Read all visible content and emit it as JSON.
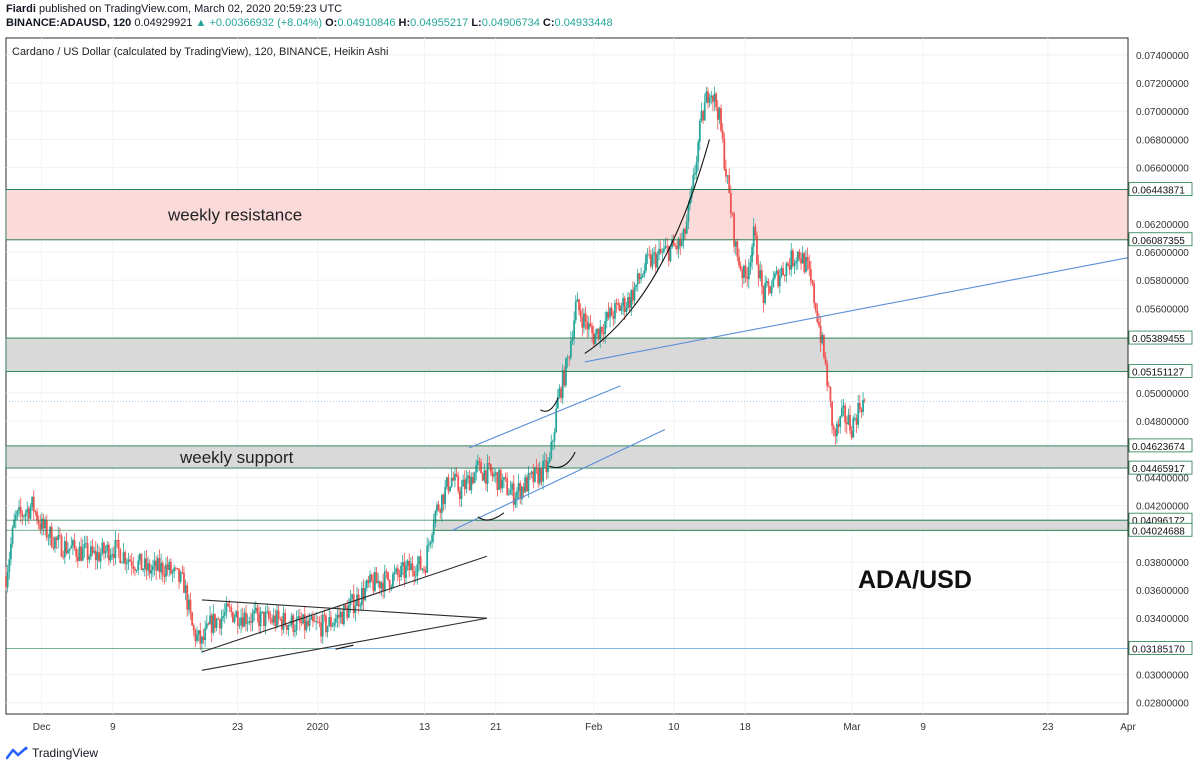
{
  "header": {
    "publisher": "Fiardi",
    "published_text": "published on TradingView.com, March 02, 2020 20:59:23 UTC",
    "symbol": "BINANCE:ADAUSD, 120",
    "last": "0.04929921",
    "change": "+0.00366932 (+8.04%)",
    "o_label": "O:",
    "o_value": "0.04910846",
    "h_label": "H:",
    "h_value": "0.04955217",
    "l_label": "L:",
    "l_value": "0.04906734",
    "c_label": "C:",
    "c_value": "0.04933448"
  },
  "footer": {
    "brand": "TradingView"
  },
  "colors": {
    "up": "#26a69a",
    "down": "#ef5350",
    "resistance_zone": "#fbdada",
    "support_zone": "#d9d9d9",
    "trendline_blue": "#5b8fd9",
    "trendline_black": "#2b2b2b",
    "level_line": "#1e7b4a"
  },
  "chart_data": {
    "type": "candlestick",
    "title": "Cardano / US Dollar (calculated by TradingView), 120, BINANCE, Heikin Ashi",
    "ylim": [
      0.0272,
      0.0752
    ],
    "y_ticks": [
      "0.07400000",
      "0.07200000",
      "0.07000000",
      "0.06800000",
      "0.06600000",
      "0.06200000",
      "0.06000000",
      "0.05800000",
      "0.05600000",
      "0.05000000",
      "0.04800000",
      "0.04400000",
      "0.04200000",
      "0.03800000",
      "0.03600000",
      "0.03400000",
      "0.03000000",
      "0.02800000"
    ],
    "y_tick_values": [
      0.074,
      0.072,
      0.07,
      0.068,
      0.066,
      0.062,
      0.06,
      0.058,
      0.056,
      0.05,
      0.048,
      0.044,
      0.042,
      0.038,
      0.036,
      0.034,
      0.03,
      0.028
    ],
    "x_ticks": [
      "Dec",
      "9",
      "23",
      "2020",
      "13",
      "21",
      "Feb",
      "10",
      "18",
      "Mar",
      "9",
      "23",
      "Apr"
    ],
    "x_tick_dates": [
      "2019-12-01",
      "2019-12-09",
      "2019-12-23",
      "2020-01-01",
      "2020-01-13",
      "2020-01-21",
      "2020-02-01",
      "2020-02-10",
      "2020-02-18",
      "2020-03-01",
      "2020-03-09",
      "2020-03-23",
      "2020-04-01"
    ],
    "x_range": [
      "2019-11-27",
      "2020-04-01"
    ],
    "price_levels": [
      {
        "label": "0.06443871",
        "value": 0.06443871
      },
      {
        "label": "0.06087355",
        "value": 0.06087355
      },
      {
        "label": "0.05389455",
        "value": 0.05389455
      },
      {
        "label": "0.05151127",
        "value": 0.05151127
      },
      {
        "label": "0.04623674",
        "value": 0.04623674
      },
      {
        "label": "0.04465917",
        "value": 0.04465917
      },
      {
        "label": "0.04096172",
        "value": 0.04096172
      },
      {
        "label": "0.04024688",
        "value": 0.04024688
      },
      {
        "label": "0.03185170",
        "value": 0.0318517
      }
    ],
    "zones": [
      {
        "name": "weekly resistance",
        "from": 0.06087,
        "to": 0.06444,
        "kind": "resistance"
      },
      {
        "name": "",
        "from": 0.05151,
        "to": 0.05389,
        "kind": "grey"
      },
      {
        "name": "weekly support",
        "from": 0.04466,
        "to": 0.04624,
        "kind": "support"
      },
      {
        "name": "",
        "from": 0.04024,
        "to": 0.04096,
        "kind": "grey"
      }
    ],
    "annotations": [
      "weekly resistance",
      "weekly support",
      "ADA/USD"
    ],
    "path_points": [
      [
        "2019-11-27",
        0.037
      ],
      [
        "2019-11-28",
        0.041
      ],
      [
        "2019-11-30",
        0.042
      ],
      [
        "2019-12-01",
        0.0405
      ],
      [
        "2019-12-03",
        0.0392
      ],
      [
        "2019-12-05",
        0.0388
      ],
      [
        "2019-12-07",
        0.0384
      ],
      [
        "2019-12-09",
        0.039
      ],
      [
        "2019-12-11",
        0.0382
      ],
      [
        "2019-12-13",
        0.0374
      ],
      [
        "2019-12-15",
        0.0376
      ],
      [
        "2019-12-17",
        0.0364
      ],
      [
        "2019-12-18",
        0.033
      ],
      [
        "2019-12-19",
        0.0322
      ],
      [
        "2019-12-20",
        0.0336
      ],
      [
        "2019-12-22",
        0.0344
      ],
      [
        "2019-12-25",
        0.034
      ],
      [
        "2019-12-28",
        0.0338
      ],
      [
        "2019-12-31",
        0.0334
      ],
      [
        "2020-01-02",
        0.0335
      ],
      [
        "2020-01-04",
        0.0344
      ],
      [
        "2020-01-07",
        0.0364
      ],
      [
        "2020-01-10",
        0.037
      ],
      [
        "2020-01-12",
        0.0378
      ],
      [
        "2020-01-13",
        0.0376
      ],
      [
        "2020-01-14",
        0.0412
      ],
      [
        "2020-01-16",
        0.044
      ],
      [
        "2020-01-17",
        0.043
      ],
      [
        "2020-01-19",
        0.0446
      ],
      [
        "2020-01-21",
        0.044
      ],
      [
        "2020-01-23",
        0.0428
      ],
      [
        "2020-01-25",
        0.0438
      ],
      [
        "2020-01-27",
        0.0448
      ],
      [
        "2020-01-28",
        0.0496
      ],
      [
        "2020-01-29",
        0.052
      ],
      [
        "2020-01-30",
        0.0562
      ],
      [
        "2020-02-01",
        0.054
      ],
      [
        "2020-02-03",
        0.0556
      ],
      [
        "2020-02-05",
        0.0566
      ],
      [
        "2020-02-07",
        0.0592
      ],
      [
        "2020-02-09",
        0.06
      ],
      [
        "2020-02-11",
        0.0606
      ],
      [
        "2020-02-12",
        0.064
      ],
      [
        "2020-02-13",
        0.069
      ],
      [
        "2020-02-14",
        0.0718
      ],
      [
        "2020-02-15",
        0.07
      ],
      [
        "2020-02-16",
        0.065
      ],
      [
        "2020-02-17",
        0.06
      ],
      [
        "2020-02-18",
        0.058
      ],
      [
        "2020-02-19",
        0.0612
      ],
      [
        "2020-02-20",
        0.0568
      ],
      [
        "2020-02-22",
        0.0586
      ],
      [
        "2020-02-24",
        0.06
      ],
      [
        "2020-02-25",
        0.0588
      ],
      [
        "2020-02-26",
        0.056
      ],
      [
        "2020-02-27",
        0.052
      ],
      [
        "2020-02-28",
        0.0468
      ],
      [
        "2020-02-29",
        0.0484
      ],
      [
        "2020-03-01",
        0.0476
      ],
      [
        "2020-03-02",
        0.0493
      ]
    ]
  }
}
